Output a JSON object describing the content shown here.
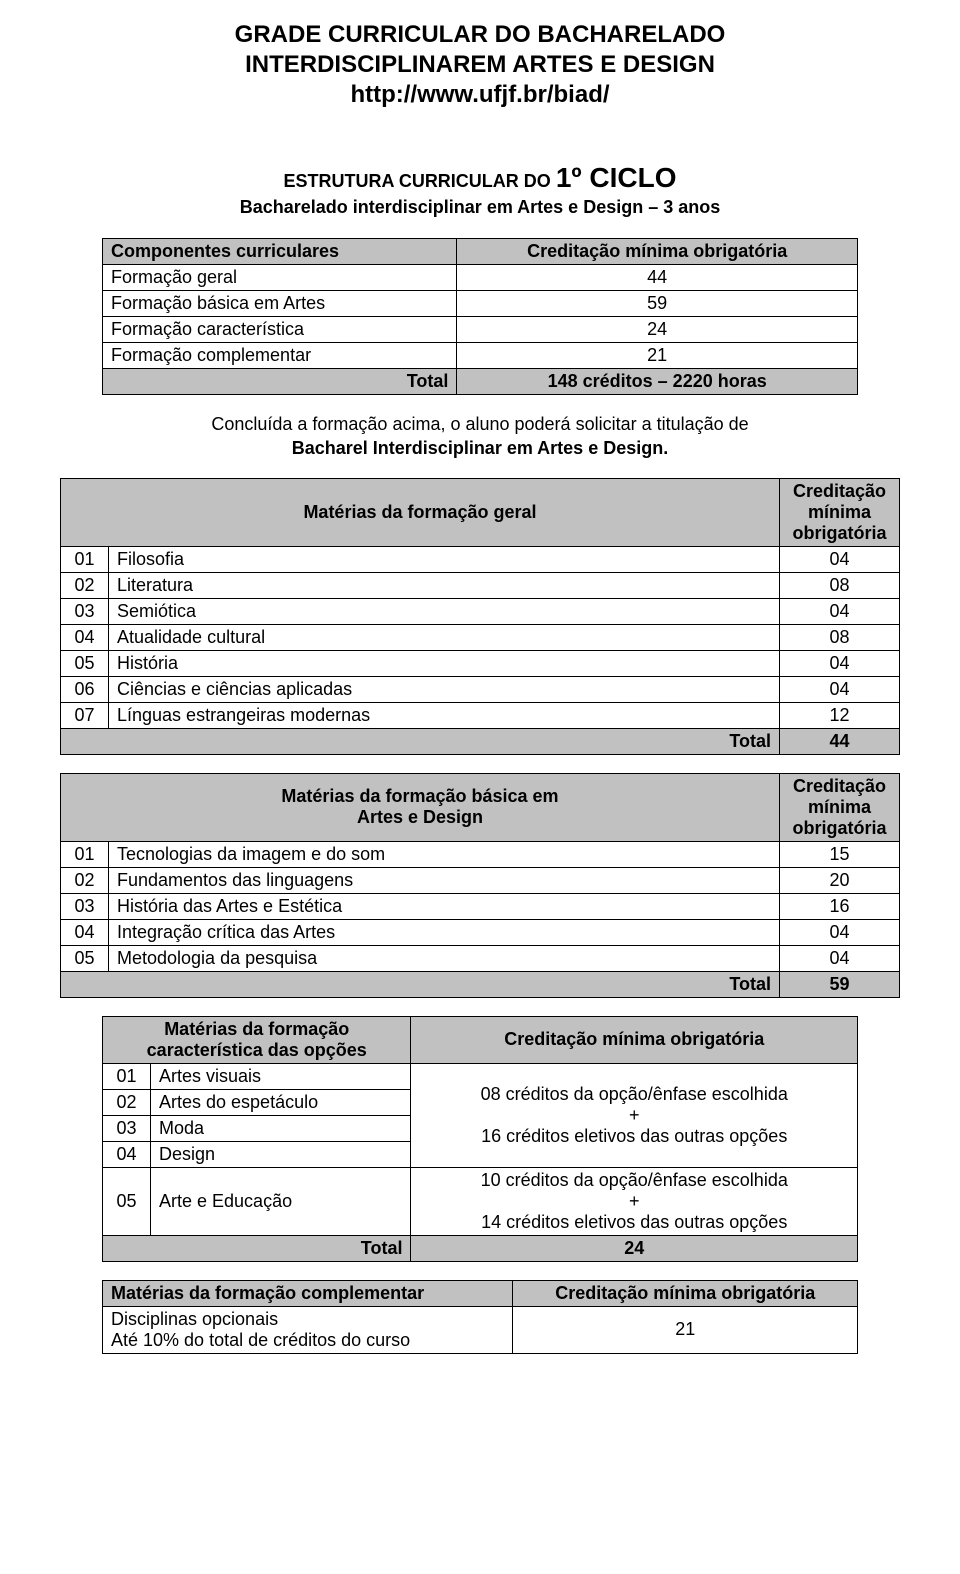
{
  "title": {
    "line1": "GRADE CURRICULAR DO BACHARELADO",
    "line2": "INTERDISCIPLINAREM ARTES E DESIGN",
    "line3": "http://www.ufjf.br/biad/"
  },
  "subtitle": {
    "prefix": "ESTRUTURA CURRICULAR DO ",
    "cycle": "1º CICLO",
    "line2": "Bacharelado interdisciplinar em Artes e Design – 3 anos"
  },
  "colors": {
    "header_bg": "#c1c1c1",
    "border": "#000000",
    "text": "#000000",
    "background": "#ffffff"
  },
  "componentes": {
    "header_left": "Componentes curriculares",
    "header_right": "Creditação mínima obrigatória",
    "rows": [
      {
        "label": "Formação geral",
        "value": "44"
      },
      {
        "label": "Formação básica em Artes",
        "value": "59"
      },
      {
        "label": "Formação característica",
        "value": "24"
      },
      {
        "label": "Formação complementar",
        "value": "21"
      }
    ],
    "total_label": "Total",
    "total_value": "148 créditos – 2220 horas"
  },
  "note": {
    "line1": "Concluída a formação acima, o aluno poderá solicitar a titulação de",
    "line2": "Bacharel Interdisciplinar em Artes e Design."
  },
  "geral": {
    "header_left": "Matérias da formação geral",
    "header_right": "Creditação mínima obrigatória",
    "rows": [
      {
        "num": "01",
        "label": "Filosofia",
        "value": "04"
      },
      {
        "num": "02",
        "label": "Literatura",
        "value": "08"
      },
      {
        "num": "03",
        "label": "Semiótica",
        "value": "04"
      },
      {
        "num": "04",
        "label": "Atualidade cultural",
        "value": "08"
      },
      {
        "num": "05",
        "label": "História",
        "value": "04"
      },
      {
        "num": "06",
        "label": "Ciências e ciências aplicadas",
        "value": "04"
      },
      {
        "num": "07",
        "label": "Línguas estrangeiras modernas",
        "value": "12"
      }
    ],
    "total_label": "Total",
    "total_value": "44"
  },
  "basica": {
    "header_left_l1": "Matérias da formação básica em",
    "header_left_l2": "Artes e Design",
    "header_right": "Creditação mínima obrigatória",
    "rows": [
      {
        "num": "01",
        "label": "Tecnologias da imagem e do som",
        "value": "15"
      },
      {
        "num": "02",
        "label": "Fundamentos das linguagens",
        "value": "20"
      },
      {
        "num": "03",
        "label": "História das Artes e Estética",
        "value": "16"
      },
      {
        "num": "04",
        "label": "Integração crítica das Artes",
        "value": "04"
      },
      {
        "num": "05",
        "label": "Metodologia da pesquisa",
        "value": "04"
      }
    ],
    "total_label": "Total",
    "total_value": "59"
  },
  "caracteristica": {
    "header_left_l1": "Matérias da formação",
    "header_left_l2": "característica das opções",
    "header_right": "Creditação mínima obrigatória",
    "group1_rows": [
      {
        "num": "01",
        "label": "Artes visuais"
      },
      {
        "num": "02",
        "label": "Artes do espetáculo"
      },
      {
        "num": "03",
        "label": "Moda"
      },
      {
        "num": "04",
        "label": "Design"
      }
    ],
    "group1_value_l1": "08 créditos da opção/ênfase escolhida",
    "group1_value_l2": "+",
    "group1_value_l3": "16 créditos eletivos das outras opções",
    "group2_row": {
      "num": "05",
      "label": "Arte e Educação"
    },
    "group2_value_l1": "10 créditos da opção/ênfase escolhida",
    "group2_value_l2": "+",
    "group2_value_l3": "14 créditos eletivos das outras opções",
    "total_label": "Total",
    "total_value": "24"
  },
  "complementar": {
    "header_left": "Matérias da formação complementar",
    "header_right": "Creditação mínima obrigatória",
    "row_l1": "Disciplinas opcionais",
    "row_l2": "Até 10%  do total de créditos do curso",
    "row_value": "21"
  }
}
